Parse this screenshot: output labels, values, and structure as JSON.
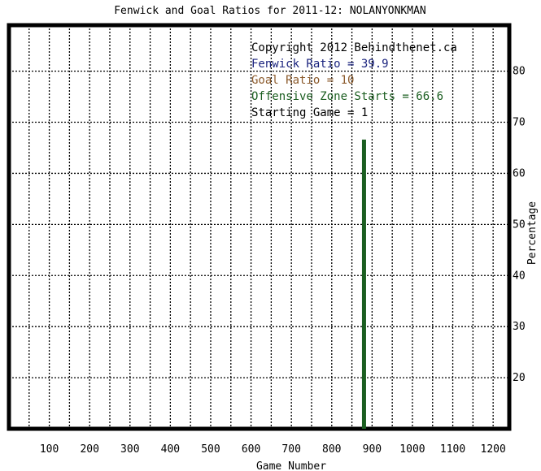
{
  "chart_data": {
    "type": "bar",
    "title": "Fenwick and Goal Ratios for 2011-12: NOLANYONKMAN",
    "xlabel": "Game Number",
    "ylabel": "Percentage",
    "xlim": [
      0,
      1240
    ],
    "ylim": [
      10,
      89
    ],
    "x_ticks": [
      100,
      200,
      300,
      400,
      500,
      600,
      700,
      800,
      900,
      1000,
      1100,
      1200
    ],
    "y_ticks": [
      20,
      30,
      40,
      50,
      60,
      70,
      80
    ],
    "grid": true,
    "legend_placement": "top-right",
    "legend": [
      {
        "text": "Copyright 2012 Behindthenet.ca",
        "color": "#000000"
      },
      {
        "text": "Fenwick Ratio = 39.9",
        "color": "#1a237e"
      },
      {
        "text": "Goal Ratio = 10",
        "color": "#8b5a2b"
      },
      {
        "text": "Offensive Zone Starts = 66.6",
        "color": "#1b5e20"
      },
      {
        "text": "Starting Game = 1",
        "color": "#000000"
      }
    ],
    "series": [
      {
        "name": "Offensive Zone Starts",
        "color": "#1b5e20",
        "points": [
          {
            "x": 880,
            "y": 66.6
          }
        ]
      }
    ]
  }
}
